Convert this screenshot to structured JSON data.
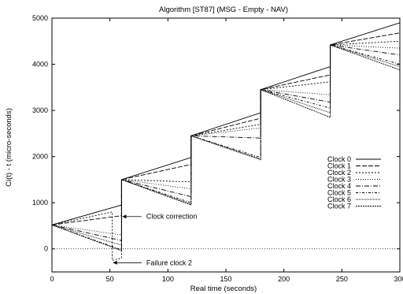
{
  "chart_data": {
    "type": "line",
    "title": "Algorithm [ST87] (MSG - Empty - NAV)",
    "xlabel": "Real time (seconds)",
    "ylabel": "Ci(t) - t (micro-seconds)",
    "xlim": [
      0,
      300
    ],
    "ylim": [
      -500,
      5000
    ],
    "xticks": [
      0,
      50,
      100,
      150,
      200,
      250,
      300
    ],
    "yticks": [
      0,
      1000,
      2000,
      3000,
      4000,
      5000
    ],
    "xtick_labels": [
      "0",
      "50",
      "100",
      "150",
      "200",
      "250",
      "300"
    ],
    "ytick_labels": [
      "0",
      "1000",
      "2000",
      "3000",
      "4000",
      "5000"
    ],
    "grid": false,
    "legend_position": "right",
    "zero_line": 0,
    "series": [
      {
        "name": "Clock 0",
        "dash": "",
        "values": [
          [
            0,
            520
          ],
          [
            60,
            950
          ],
          [
            60,
            1500
          ],
          [
            120,
            1980
          ],
          [
            120,
            2450
          ],
          [
            180,
            2950
          ],
          [
            180,
            3450
          ],
          [
            240,
            3950
          ],
          [
            240,
            4420
          ],
          [
            300,
            4900
          ]
        ]
      },
      {
        "name": "Clock 1",
        "dash": "6,2",
        "values": [
          [
            0,
            520
          ],
          [
            60,
            720
          ],
          [
            60,
            1500
          ],
          [
            120,
            1830
          ],
          [
            120,
            2450
          ],
          [
            180,
            2830
          ],
          [
            180,
            3450
          ],
          [
            240,
            3770
          ],
          [
            240,
            4420
          ],
          [
            300,
            4680
          ]
        ]
      },
      {
        "name": "Clock 2",
        "dash": "2,2",
        "values": [
          [
            0,
            520
          ],
          [
            52,
            800
          ],
          [
            52,
            -250
          ],
          [
            60,
            -200
          ],
          [
            60,
            1500
          ],
          [
            120,
            1450
          ],
          [
            120,
            2450
          ],
          [
            180,
            2700
          ],
          [
            180,
            3450
          ],
          [
            240,
            3620
          ],
          [
            240,
            4420
          ],
          [
            300,
            4500
          ]
        ]
      },
      {
        "name": "Clock 3",
        "dash": "1,2",
        "values": [
          [
            0,
            520
          ],
          [
            60,
            300
          ],
          [
            60,
            1500
          ],
          [
            120,
            1300
          ],
          [
            120,
            2450
          ],
          [
            180,
            2620
          ],
          [
            180,
            3450
          ],
          [
            240,
            3340
          ],
          [
            240,
            4420
          ],
          [
            300,
            4350
          ]
        ]
      },
      {
        "name": "Clock 4",
        "dash": "6,2,1,2",
        "values": [
          [
            0,
            520
          ],
          [
            60,
            180
          ],
          [
            60,
            1500
          ],
          [
            120,
            1130
          ],
          [
            120,
            2450
          ],
          [
            180,
            2400
          ],
          [
            180,
            3450
          ],
          [
            240,
            3180
          ],
          [
            240,
            4420
          ],
          [
            300,
            4200
          ]
        ]
      },
      {
        "name": "Clock 5",
        "dash": "3,2,1,2",
        "values": [
          [
            0,
            520
          ],
          [
            60,
            -20
          ],
          [
            60,
            1500
          ],
          [
            120,
            1000
          ],
          [
            120,
            2450
          ],
          [
            180,
            1980
          ],
          [
            180,
            3450
          ],
          [
            240,
            3050
          ],
          [
            240,
            4420
          ],
          [
            300,
            4000
          ]
        ]
      },
      {
        "name": "Clock 6",
        "dash": "1,1",
        "values": [
          [
            0,
            520
          ],
          [
            60,
            80
          ],
          [
            60,
            1500
          ],
          [
            120,
            970
          ],
          [
            120,
            2450
          ],
          [
            180,
            1950
          ],
          [
            180,
            3450
          ],
          [
            240,
            2950
          ],
          [
            240,
            4420
          ],
          [
            300,
            3950
          ]
        ]
      },
      {
        "name": "Clock 7",
        "dash": "2,1",
        "values": [
          [
            0,
            520
          ],
          [
            60,
            -40
          ],
          [
            60,
            1500
          ],
          [
            120,
            950
          ],
          [
            120,
            2450
          ],
          [
            180,
            1930
          ],
          [
            180,
            3450
          ],
          [
            240,
            2850
          ],
          [
            240,
            4420
          ],
          [
            300,
            3880
          ]
        ]
      }
    ],
    "annotations": [
      {
        "text": "Clock correction",
        "point": [
          60,
          700
        ],
        "text_at": [
          80,
          700
        ]
      },
      {
        "text": "Failure clock 2",
        "point": [
          52,
          -300
        ],
        "text_at": [
          80,
          -300
        ]
      }
    ]
  }
}
